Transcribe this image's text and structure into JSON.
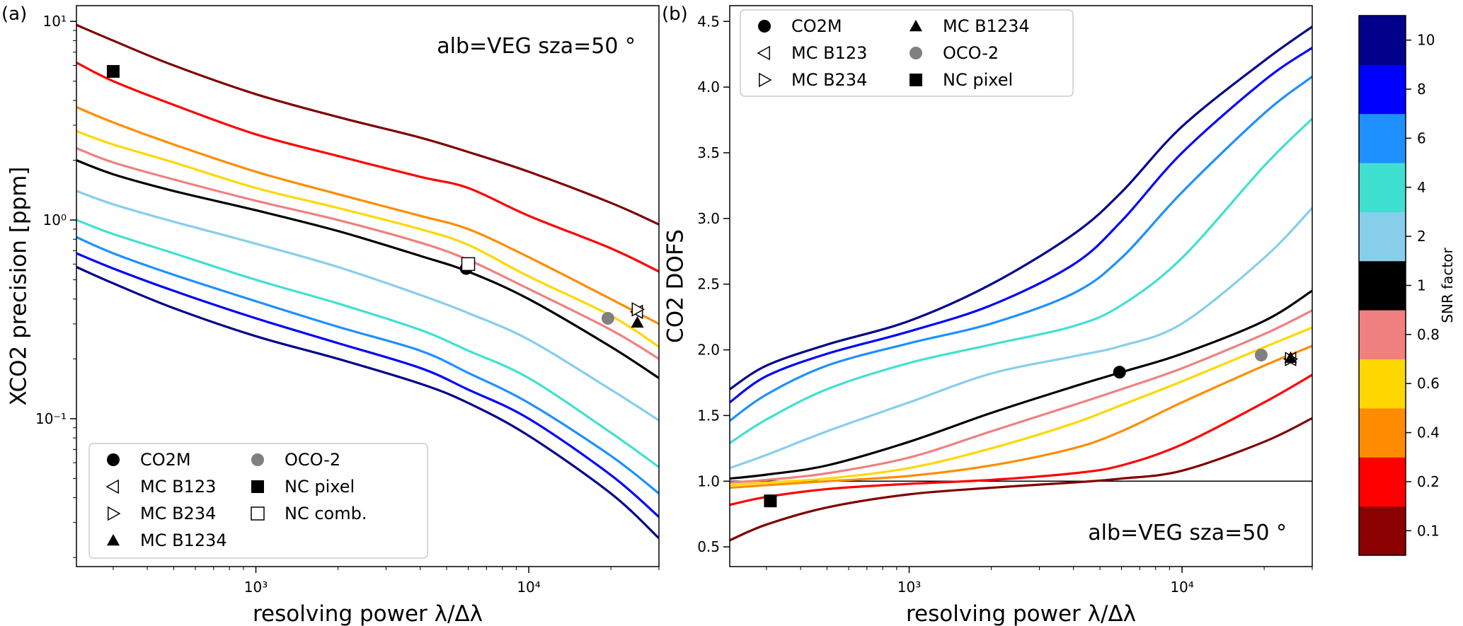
{
  "chart_data": [
    {
      "type": "line",
      "panel_label": "(a)",
      "xlabel": "resolving power λ/Δλ",
      "ylabel": "XCO2 precision [ppm]",
      "xscale": "log",
      "yscale": "log",
      "xlim": [
        220,
        30000
      ],
      "ylim": [
        0.018,
        12
      ],
      "xticks": [
        {
          "value": 1000,
          "label": "10³"
        },
        {
          "value": 10000,
          "label": "10⁴"
        }
      ],
      "yticks": [
        {
          "value": 10,
          "label": "10¹"
        },
        {
          "value": 1,
          "label": "10⁰"
        },
        {
          "value": 0.1,
          "label": "10⁻¹"
        }
      ],
      "annotation": "alb=VEG sza=50 °",
      "legend_position": "lower-left",
      "x": [
        220,
        300,
        500,
        1000,
        2000,
        4000,
        6000,
        10000,
        20000,
        30000
      ],
      "series": [
        {
          "name": "0.1",
          "color": "#7f0000",
          "values": [
            9.6,
            8.0,
            6.0,
            4.3,
            3.3,
            2.6,
            2.2,
            1.75,
            1.22,
            0.95
          ]
        },
        {
          "name": "0.2",
          "color": "#ff0000",
          "values": [
            6.2,
            5.0,
            3.8,
            2.7,
            2.1,
            1.65,
            1.45,
            1.05,
            0.72,
            0.55
          ]
        },
        {
          "name": "0.4",
          "color": "#ff8c00",
          "values": [
            3.7,
            3.1,
            2.4,
            1.75,
            1.35,
            1.05,
            0.9,
            0.65,
            0.4,
            0.3
          ]
        },
        {
          "name": "0.6",
          "color": "#ffd700",
          "values": [
            2.8,
            2.4,
            1.95,
            1.45,
            1.15,
            0.9,
            0.75,
            0.52,
            0.33,
            0.23
          ]
        },
        {
          "name": "0.8",
          "color": "#f08080",
          "values": [
            2.3,
            1.95,
            1.6,
            1.25,
            1.0,
            0.77,
            0.63,
            0.45,
            0.28,
            0.2
          ]
        },
        {
          "name": "1",
          "color": "#000000",
          "values": [
            2.0,
            1.7,
            1.4,
            1.12,
            0.88,
            0.66,
            0.55,
            0.4,
            0.23,
            0.16
          ]
        },
        {
          "name": "2",
          "color": "#87ceeb",
          "values": [
            1.4,
            1.2,
            0.98,
            0.76,
            0.58,
            0.42,
            0.34,
            0.25,
            0.14,
            0.098
          ]
        },
        {
          "name": "4",
          "color": "#40e0d0",
          "values": [
            1.0,
            0.85,
            0.68,
            0.5,
            0.38,
            0.28,
            0.22,
            0.16,
            0.085,
            0.057
          ]
        },
        {
          "name": "6",
          "color": "#1e90ff",
          "values": [
            0.82,
            0.68,
            0.53,
            0.39,
            0.29,
            0.22,
            0.17,
            0.12,
            0.065,
            0.042
          ]
        },
        {
          "name": "8",
          "color": "#0000ff",
          "values": [
            0.68,
            0.57,
            0.44,
            0.32,
            0.24,
            0.18,
            0.14,
            0.1,
            0.052,
            0.032
          ]
        },
        {
          "name": "10",
          "color": "#00008b",
          "values": [
            0.58,
            0.48,
            0.36,
            0.26,
            0.2,
            0.15,
            0.12,
            0.082,
            0.042,
            0.025
          ]
        }
      ],
      "markers": [
        {
          "name": "CO2M",
          "symbol": "circle",
          "x": 5900,
          "y": 0.57
        },
        {
          "name": "OCO-2",
          "symbol": "circle-gray",
          "x": 19500,
          "y": 0.32
        },
        {
          "name": "MC B1234",
          "symbol": "triangle-up",
          "x": 25000,
          "y": 0.305
        },
        {
          "name": "MC B123",
          "symbol": "triangle-left",
          "x": 25000,
          "y": 0.345
        },
        {
          "name": "MC B234",
          "symbol": "triangle-right",
          "x": 25000,
          "y": 0.355
        },
        {
          "name": "NC pixel",
          "symbol": "square",
          "x": 300,
          "y": 5.6
        },
        {
          "name": "NC comb.",
          "symbol": "square-open",
          "x": 6000,
          "y": 0.6
        }
      ],
      "legend": [
        {
          "label": "CO2M",
          "symbol": "circle"
        },
        {
          "label": "OCO-2",
          "symbol": "circle-gray"
        },
        {
          "label": "MC B123",
          "symbol": "triangle-left"
        },
        {
          "label": "NC pixel",
          "symbol": "square"
        },
        {
          "label": "MC B234",
          "symbol": "triangle-right"
        },
        {
          "label": "NC comb.",
          "symbol": "square-open"
        },
        {
          "label": "MC B1234",
          "symbol": "triangle-up"
        }
      ]
    },
    {
      "type": "line",
      "panel_label": "(b)",
      "xlabel": "resolving power λ/Δλ",
      "ylabel": "CO2 DOFS",
      "xscale": "log",
      "yscale": "linear",
      "xlim": [
        220,
        30000
      ],
      "ylim": [
        0.35,
        4.62
      ],
      "xticks": [
        {
          "value": 1000,
          "label": "10³"
        },
        {
          "value": 10000,
          "label": "10⁴"
        }
      ],
      "yticks": [
        {
          "value": 0.5,
          "label": "0.5"
        },
        {
          "value": 1.0,
          "label": "1.0"
        },
        {
          "value": 1.5,
          "label": "1.5"
        },
        {
          "value": 2.0,
          "label": "2.0"
        },
        {
          "value": 2.5,
          "label": "2.5"
        },
        {
          "value": 3.0,
          "label": "3.0"
        },
        {
          "value": 3.5,
          "label": "3.5"
        },
        {
          "value": 4.0,
          "label": "4.0"
        },
        {
          "value": 4.5,
          "label": "4.5"
        }
      ],
      "hline": 1.0,
      "annotation": "alb=VEG sza=50 °",
      "legend_position": "top-left",
      "x": [
        220,
        300,
        500,
        1000,
        2000,
        4000,
        6000,
        10000,
        20000,
        30000
      ],
      "series": [
        {
          "name": "0.1",
          "color": "#7f0000",
          "values": [
            0.55,
            0.67,
            0.8,
            0.9,
            0.95,
            0.99,
            1.02,
            1.08,
            1.3,
            1.48
          ]
        },
        {
          "name": "0.2",
          "color": "#ff0000",
          "values": [
            0.82,
            0.88,
            0.94,
            0.98,
            1.01,
            1.06,
            1.12,
            1.28,
            1.6,
            1.81
          ]
        },
        {
          "name": "0.4",
          "color": "#ff8c00",
          "values": [
            0.95,
            0.97,
            1.0,
            1.04,
            1.12,
            1.25,
            1.38,
            1.6,
            1.88,
            2.03
          ]
        },
        {
          "name": "0.6",
          "color": "#ffd700",
          "values": [
            0.97,
            0.99,
            1.02,
            1.1,
            1.25,
            1.44,
            1.58,
            1.76,
            2.02,
            2.17
          ]
        },
        {
          "name": "0.8",
          "color": "#f08080",
          "values": [
            0.99,
            1.01,
            1.06,
            1.18,
            1.38,
            1.58,
            1.7,
            1.86,
            2.12,
            2.3
          ]
        },
        {
          "name": "1",
          "color": "#000000",
          "values": [
            1.02,
            1.05,
            1.12,
            1.3,
            1.52,
            1.72,
            1.83,
            1.97,
            2.22,
            2.45
          ]
        },
        {
          "name": "2",
          "color": "#87ceeb",
          "values": [
            1.1,
            1.2,
            1.38,
            1.6,
            1.82,
            1.95,
            2.03,
            2.2,
            2.7,
            3.08
          ]
        },
        {
          "name": "4",
          "color": "#40e0d0",
          "values": [
            1.29,
            1.47,
            1.7,
            1.9,
            2.04,
            2.18,
            2.34,
            2.7,
            3.4,
            3.76
          ]
        },
        {
          "name": "6",
          "color": "#1e90ff",
          "values": [
            1.46,
            1.66,
            1.88,
            2.05,
            2.2,
            2.43,
            2.7,
            3.2,
            3.8,
            4.08
          ]
        },
        {
          "name": "8",
          "color": "#0000ff",
          "values": [
            1.6,
            1.8,
            1.97,
            2.14,
            2.34,
            2.65,
            2.98,
            3.5,
            4.05,
            4.3
          ]
        },
        {
          "name": "10",
          "color": "#00008b",
          "values": [
            1.7,
            1.88,
            2.04,
            2.22,
            2.5,
            2.88,
            3.2,
            3.7,
            4.2,
            4.46
          ]
        }
      ],
      "markers": [
        {
          "name": "CO2M",
          "symbol": "circle",
          "x": 5900,
          "y": 1.83
        },
        {
          "name": "OCO-2",
          "symbol": "circle-gray",
          "x": 19500,
          "y": 1.96
        },
        {
          "name": "MC B123",
          "symbol": "triangle-left",
          "x": 25000,
          "y": 1.93
        },
        {
          "name": "MC B234",
          "symbol": "triangle-right",
          "x": 25000,
          "y": 1.93
        },
        {
          "name": "MC B1234",
          "symbol": "triangle-up",
          "x": 25000,
          "y": 1.94
        },
        {
          "name": "NC pixel",
          "symbol": "square",
          "x": 310,
          "y": 0.85
        }
      ],
      "legend": [
        {
          "label": "CO2M",
          "symbol": "circle"
        },
        {
          "label": "MC B1234",
          "symbol": "triangle-up"
        },
        {
          "label": "MC B123",
          "symbol": "triangle-left"
        },
        {
          "label": "OCO-2",
          "symbol": "circle-gray"
        },
        {
          "label": "MC B234",
          "symbol": "triangle-right"
        },
        {
          "label": "NC pixel",
          "symbol": "square"
        }
      ]
    },
    {
      "type": "colorbar",
      "label": "SNR factor",
      "levels": [
        {
          "label": "0.1",
          "color": "#8b0000"
        },
        {
          "label": "0.2",
          "color": "#ff0000"
        },
        {
          "label": "0.4",
          "color": "#ff8c00"
        },
        {
          "label": "0.6",
          "color": "#ffd700"
        },
        {
          "label": "0.8",
          "color": "#f08080"
        },
        {
          "label": "1",
          "color": "#000000"
        },
        {
          "label": "2",
          "color": "#87ceeb"
        },
        {
          "label": "4",
          "color": "#40e0d0"
        },
        {
          "label": "6",
          "color": "#1e90ff"
        },
        {
          "label": "8",
          "color": "#0000ff"
        },
        {
          "label": "10",
          "color": "#00008b"
        }
      ]
    }
  ]
}
